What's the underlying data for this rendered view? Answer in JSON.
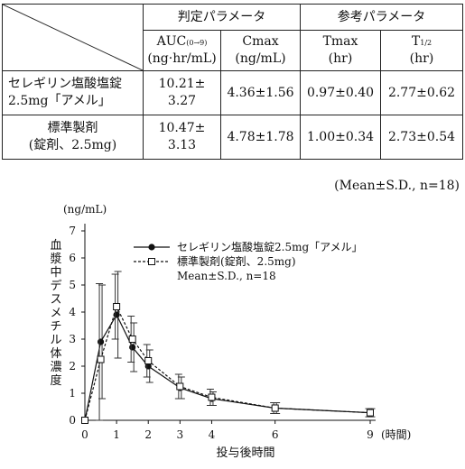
{
  "table": {
    "header_group": {
      "judge": "判定パラメータ",
      "reference": "参考パラメータ"
    },
    "columns": [
      {
        "name": "AUC",
        "sub": "(0→9)",
        "unit": "(ng·hr/mL)"
      },
      {
        "name": "Cmax",
        "sub": "",
        "unit": "(ng/mL)"
      },
      {
        "name": "Tmax",
        "sub": "",
        "unit": "(hr)"
      },
      {
        "name": "T",
        "sub": "1/2",
        "unit": "(hr)"
      }
    ],
    "rows": [
      {
        "label_line1": "セレギリン塩酸塩錠",
        "label_line2": "2.5mg「アメル」",
        "auc_line1": "10.21±",
        "auc_line2": "3.27",
        "cmax": "4.36±1.56",
        "tmax": "0.97±0.40",
        "thalf": "2.77±0.62"
      },
      {
        "label_line1": "標準製剤",
        "label_line2": "(錠剤、2.5mg)",
        "auc_line1": "10.47±",
        "auc_line2": "3.13",
        "cmax": "4.78±1.78",
        "tmax": "1.00±0.34",
        "thalf": "2.73±0.54"
      }
    ],
    "note": "(Mean±S.D.,  n=18)"
  },
  "chart_data": {
    "type": "line",
    "y_unit": "(ng/mL)",
    "ylabel": "血漿中デスメチル体濃度",
    "xlabel": "投与後時間",
    "x_unit": "(時間)",
    "x_ticks": [
      0,
      1,
      2,
      3,
      4,
      6,
      9
    ],
    "y_ticks": [
      0,
      1,
      2,
      3,
      4,
      5,
      6,
      7
    ],
    "xlim": [
      0,
      9
    ],
    "ylim": [
      0,
      7
    ],
    "legend_stat": "Mean±S.D.,  n=18",
    "series": [
      {
        "name": "セレギリン塩酸塩錠2.5mg「アメル」",
        "marker": "filled-circle",
        "line": "solid",
        "x": [
          0,
          0.5,
          1,
          1.5,
          2,
          3,
          4,
          6,
          9
        ],
        "y": [
          0,
          2.9,
          3.9,
          2.7,
          2.0,
          1.2,
          0.8,
          0.45,
          0.28
        ],
        "sd": [
          0,
          2.1,
          1.6,
          0.9,
          0.6,
          0.4,
          0.25,
          0.2,
          0.15
        ]
      },
      {
        "name": "標準製剤(錠剤、2.5mg)",
        "marker": "open-square",
        "line": "dashed",
        "x": [
          0,
          0.5,
          1,
          1.5,
          2,
          3,
          4,
          6,
          9
        ],
        "y": [
          0,
          2.25,
          4.2,
          3.0,
          2.2,
          1.25,
          0.85,
          0.45,
          0.28
        ],
        "sd": [
          0,
          2.8,
          1.2,
          0.85,
          0.6,
          0.45,
          0.3,
          0.2,
          0.15
        ]
      }
    ]
  }
}
